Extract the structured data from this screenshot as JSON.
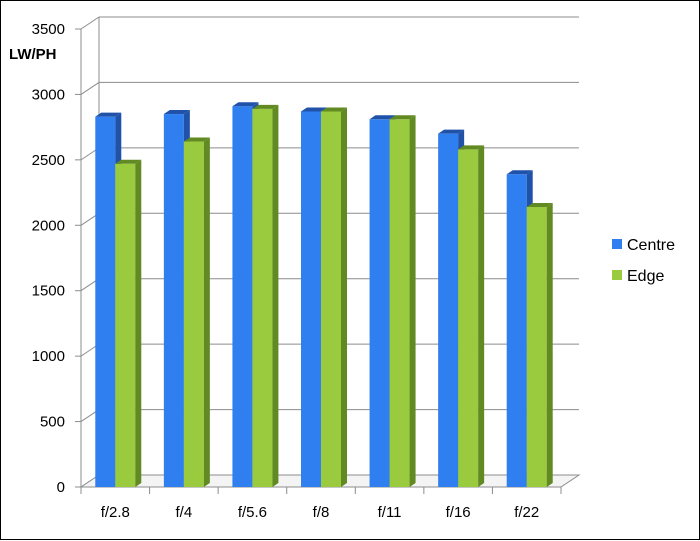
{
  "chart_data": {
    "type": "bar",
    "style": "3d-clustered",
    "title": "",
    "xlabel": "",
    "ylabel": "LW/PH",
    "categories": [
      "f/2.8",
      "f/4",
      "f/5.6",
      "f/8",
      "f/11",
      "f/16",
      "f/22"
    ],
    "series": [
      {
        "name": "Centre",
        "values": [
          2830,
          2850,
          2910,
          2870,
          2810,
          2700,
          2390
        ],
        "color": "#2f7ff0",
        "side_color": "#1f52a8"
      },
      {
        "name": "Edge",
        "values": [
          2470,
          2640,
          2890,
          2870,
          2810,
          2580,
          2140
        ],
        "color": "#9acb3f",
        "side_color": "#628a22"
      }
    ],
    "ylim": [
      0,
      3500
    ],
    "yticks": [
      0,
      500,
      1000,
      1500,
      2000,
      2500,
      3000,
      3500
    ],
    "grid": true,
    "legend_position": "right"
  }
}
